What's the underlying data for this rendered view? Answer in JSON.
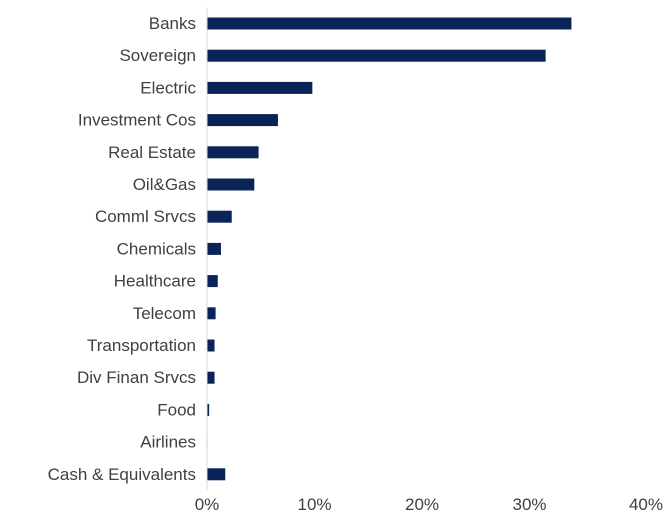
{
  "colors": {
    "bar": "#0a2458",
    "axis": "#d9d9d9",
    "text": "#404040"
  },
  "chart_data": {
    "type": "bar",
    "orientation": "horizontal",
    "categories": [
      "Banks",
      "Sovereign",
      "Electric",
      "Investment Cos",
      "Real Estate",
      "Oil&Gas",
      "Comml Srvcs",
      "Chemicals",
      "Healthcare",
      "Telecom",
      "Transportation",
      "Div Finan Srvcs",
      "Food",
      "Airlines",
      "Cash & Equivalents"
    ],
    "values": [
      33.9,
      31.5,
      9.8,
      6.6,
      4.8,
      4.4,
      2.3,
      1.3,
      1.0,
      0.8,
      0.7,
      0.7,
      0.2,
      0.05,
      1.7
    ],
    "xlim": [
      0,
      40
    ],
    "xticks": [
      0,
      10,
      20,
      30,
      40
    ],
    "xtick_labels": [
      "0%",
      "10%",
      "20%",
      "30%",
      "40%"
    ],
    "grid": false,
    "legend": "none"
  }
}
